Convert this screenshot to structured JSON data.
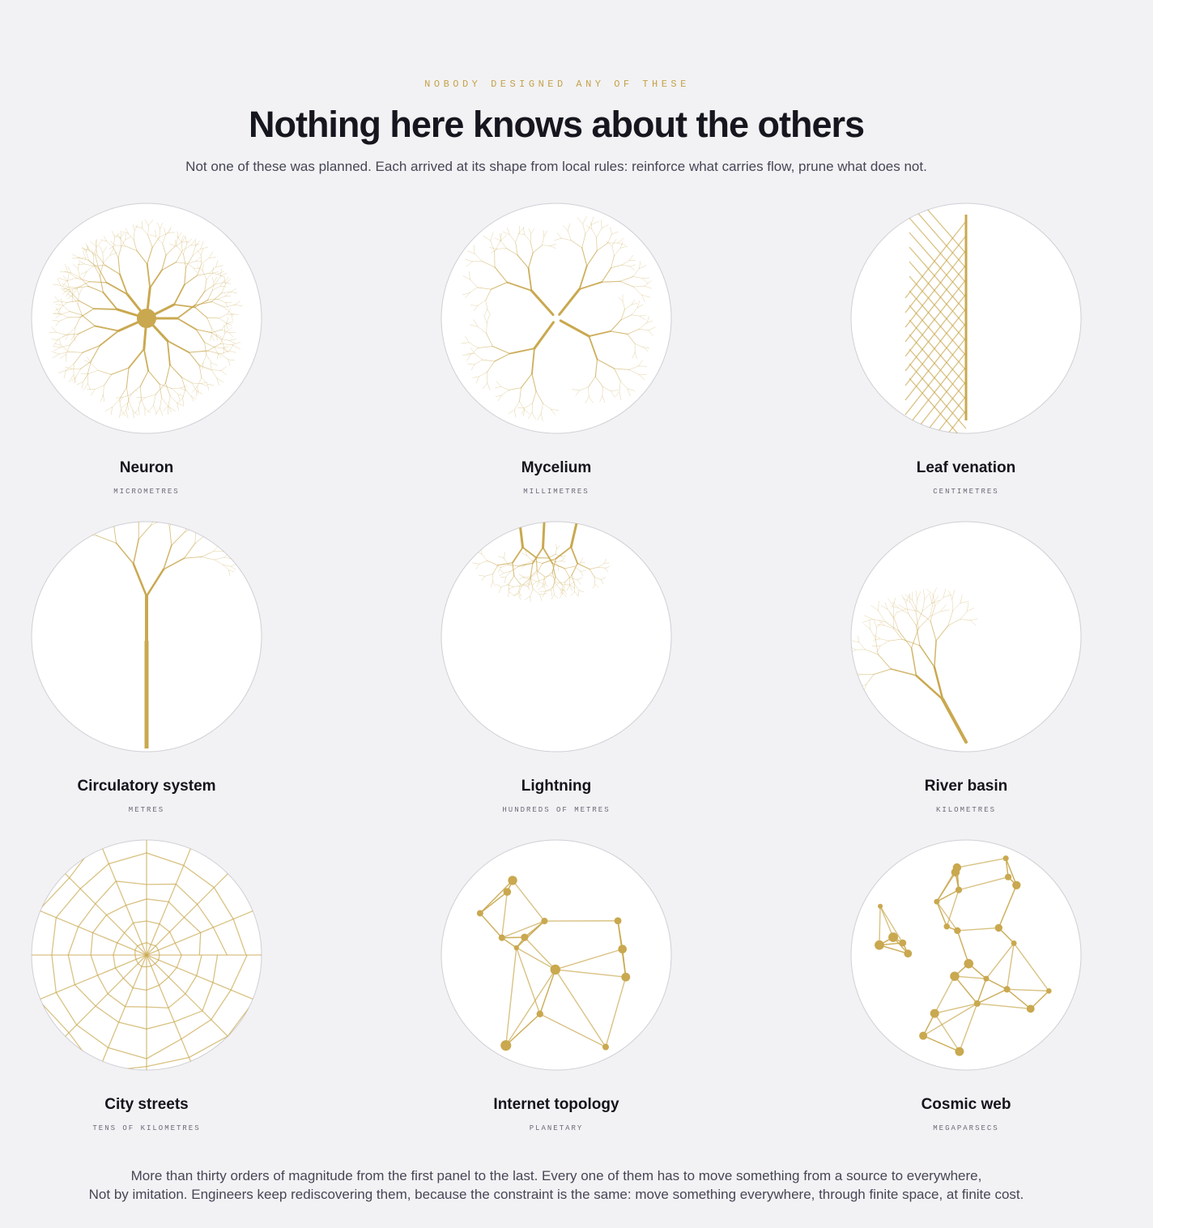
{
  "header": {
    "kicker": "NOBODY DESIGNED ANY OF THESE",
    "title": "Nothing here knows about the others",
    "subtitle": "Not one of these was planned. Each arrived at its shape from local rules: reinforce what carries flow, prune what does not."
  },
  "panels": [
    {
      "name": "Neuron",
      "scale": "MICROMETRES"
    },
    {
      "name": "Mycelium",
      "scale": "MILLIMETRES"
    },
    {
      "name": "Leaf venation",
      "scale": "CENTIMETRES"
    },
    {
      "name": "Circulatory system",
      "scale": "METRES"
    },
    {
      "name": "Lightning",
      "scale": "HUNDREDS OF METRES"
    },
    {
      "name": "River basin",
      "scale": "KILOMETRES"
    },
    {
      "name": "City streets",
      "scale": "TENS OF KILOMETRES"
    },
    {
      "name": "Internet topology",
      "scale": "PLANETARY"
    },
    {
      "name": "Cosmic web",
      "scale": "MEGAPARSECS"
    }
  ],
  "footer": {
    "lines": [
      "More than thirty orders of magnitude from the first panel to the last. Every one of them has to move something from a source to everywhere,",
      "Not by imitation. Engineers keep rediscovering them, because the constraint is the same: move something everywhere, through finite space, at finite cost."
    ]
  }
}
